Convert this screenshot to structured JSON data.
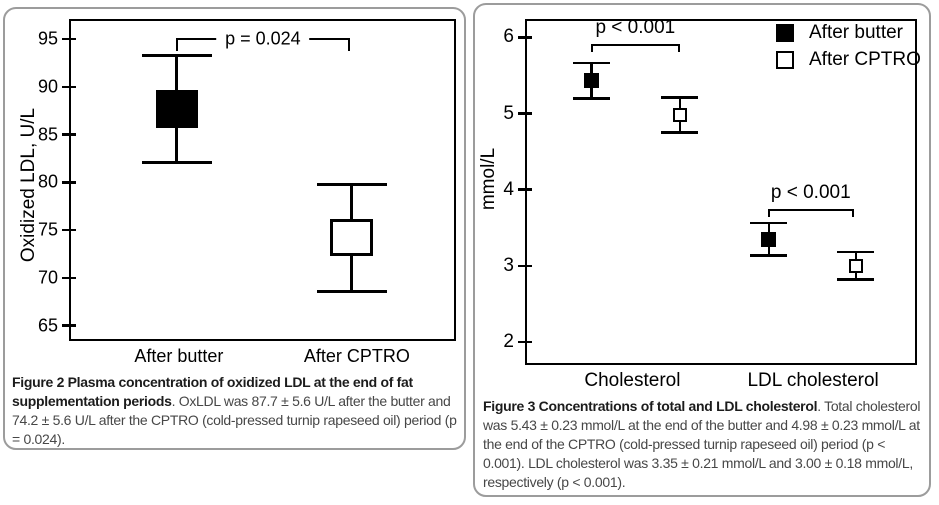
{
  "figure2": {
    "y_axis_label": "Oxidized LDL, U/L",
    "caption_bold": "Figure 2 Plasma concentration of oxidized LDL at the end of fat supplementation periods",
    "caption_rest": ". OxLDL was 87.7 ± 5.6 U/L after the butter and 74.2 ± 5.6 U/L after the CPTRO (cold-pressed turnip rapeseed oil) period (p = 0.024)."
  },
  "figure3": {
    "y_axis_label": "mmol/L",
    "caption_bold": "Figure 3 Concentrations of total and LDL cholesterol",
    "caption_rest": ". Total cholesterol was 5.43 ± 0.23 mmol/L at the end of the butter and 4.98 ± 0.23 mmol/L at the end of the CPTRO (cold-pressed turnip rapeseed oil) period (p < 0.001). LDL cholesterol was 3.35 ± 0.21 mmol/L and 3.00 ± 0.18 mmol/L, respectively (p < 0.001)."
  },
  "chart_data": [
    {
      "figure_label": "Figure 2",
      "type": "scatter",
      "marker_style": "square markers with mean ± SD error bars",
      "title": "Plasma concentration of oxidized LDL at the end of fat supplementation periods",
      "xlabel": "",
      "ylabel": "Oxidized LDL, U/L",
      "yticks": [
        65,
        70,
        75,
        80,
        85,
        90,
        95
      ],
      "ylim": [
        63.4,
        97.1
      ],
      "grid": false,
      "legend": null,
      "categories": [
        "After butter",
        "After CPTRO"
      ],
      "category_xfrac": [
        0.284,
        0.744
      ],
      "points": [
        {
          "series": "After butter",
          "category": "After butter",
          "marker": "filled-square",
          "mean": 87.7,
          "sd": 5.6,
          "whisker_low": 82.1,
          "whisker_high": 93.3,
          "xfrac": 0.279
        },
        {
          "series": "After CPTRO",
          "category": "After CPTRO",
          "marker": "open-square",
          "mean": 74.2,
          "sd": 5.6,
          "whisker_low": 68.6,
          "whisker_high": 79.8,
          "xfrac": 0.731
        }
      ],
      "annotations": [
        {
          "text": "p = 0.024",
          "style": "inline",
          "x1frac": 0.276,
          "x2frac": 0.726,
          "y_value": 95.05
        }
      ]
    },
    {
      "figure_label": "Figure 3",
      "type": "scatter",
      "marker_style": "square markers with mean ± SD error bars",
      "title": "Concentrations of total and LDL cholesterol",
      "xlabel": "",
      "ylabel": "mmol/L",
      "yticks": [
        2,
        3,
        4,
        5,
        6
      ],
      "ylim": [
        1.7,
        6.24
      ],
      "grid": false,
      "legend": {
        "position": "top-right",
        "entries": [
          {
            "label": "After butter",
            "marker": "filled-square"
          },
          {
            "label": "After CPTRO",
            "marker": "open-square"
          }
        ]
      },
      "categories": [
        "Cholesterol",
        "LDL cholesterol"
      ],
      "category_xfrac": [
        0.274,
        0.735
      ],
      "points": [
        {
          "series": "After butter",
          "category": "Cholesterol",
          "marker": "filled-square",
          "mean": 5.43,
          "sd": 0.23,
          "whisker_low": 5.2,
          "whisker_high": 5.66,
          "xfrac": 0.17
        },
        {
          "series": "After CPTRO",
          "category": "Cholesterol",
          "marker": "open-square",
          "mean": 4.98,
          "sd": 0.23,
          "whisker_low": 4.75,
          "whisker_high": 5.21,
          "xfrac": 0.395
        },
        {
          "series": "After butter",
          "category": "LDL cholesterol",
          "marker": "filled-square",
          "mean": 3.35,
          "sd": 0.21,
          "whisker_low": 3.14,
          "whisker_high": 3.56,
          "xfrac": 0.622
        },
        {
          "series": "After CPTRO",
          "category": "LDL cholesterol",
          "marker": "open-square",
          "mean": 3.0,
          "sd": 0.18,
          "whisker_low": 2.82,
          "whisker_high": 3.18,
          "xfrac": 0.844
        }
      ],
      "annotations": [
        {
          "text": "p < 0.001",
          "style": "above",
          "x1frac": 0.168,
          "x2frac": 0.395,
          "y_value": 5.895
        },
        {
          "text": "p < 0.001",
          "style": "above",
          "x1frac": 0.619,
          "x2frac": 0.839,
          "y_value": 3.74
        }
      ]
    }
  ]
}
